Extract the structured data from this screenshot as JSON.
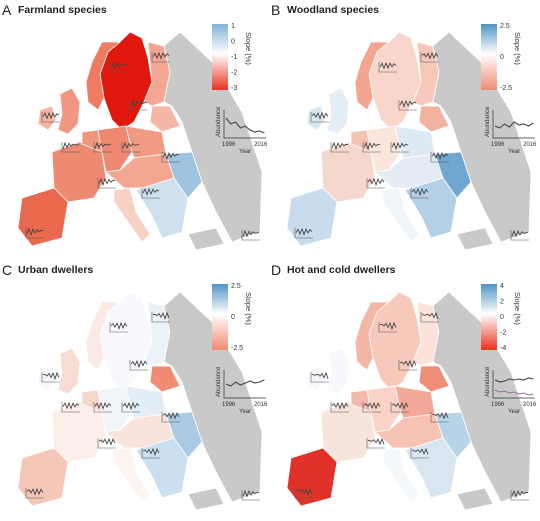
{
  "panels": [
    {
      "letter": "A",
      "title": "Farmland species",
      "legend": {
        "label": "Slope (%)",
        "ticks": [
          "1",
          "0",
          "-1",
          "-2",
          "-3"
        ],
        "colors": [
          "#7fb2d6",
          "#ffffff",
          "#e8331e"
        ]
      },
      "inset": {
        "ylabel": "Abundance",
        "xlabel": "Year",
        "x_ticks": [
          "1996",
          "2016"
        ]
      }
    },
    {
      "letter": "B",
      "title": "Woodland species",
      "legend": {
        "label": "Slope (%)",
        "ticks": [
          "2.5",
          "0",
          "-2.5"
        ],
        "colors": [
          "#4f93c4",
          "#ffffff",
          "#f08a74"
        ]
      },
      "inset": {
        "ylabel": "Abundance",
        "xlabel": "Year",
        "x_ticks": [
          "1996",
          "2016"
        ]
      }
    },
    {
      "letter": "C",
      "title": "Urban dwellers",
      "legend": {
        "label": "Slope (%)",
        "ticks": [
          "2.5",
          "0",
          "-2.5"
        ],
        "colors": [
          "#4f93c4",
          "#ffffff",
          "#f08a74"
        ]
      },
      "inset": {
        "ylabel": "Abundance",
        "xlabel": "Year",
        "x_ticks": [
          "1996",
          "2016"
        ]
      }
    },
    {
      "letter": "D",
      "title": "Hot and cold dwellers",
      "legend": {
        "label": "Slope (%)",
        "ticks": [
          "4",
          "2",
          "0",
          "-2",
          "-4"
        ],
        "colors": [
          "#4f93c4",
          "#ffffff",
          "#e8331e"
        ]
      },
      "inset": {
        "ylabel": "Abundance",
        "xlabel": "Year",
        "x_ticks": [
          "1996",
          "2016"
        ]
      }
    }
  ],
  "colors": {
    "no_data": "#c9c9c9",
    "trend_line": "#444444",
    "trend_line_alt": "#9a6a9a"
  }
}
